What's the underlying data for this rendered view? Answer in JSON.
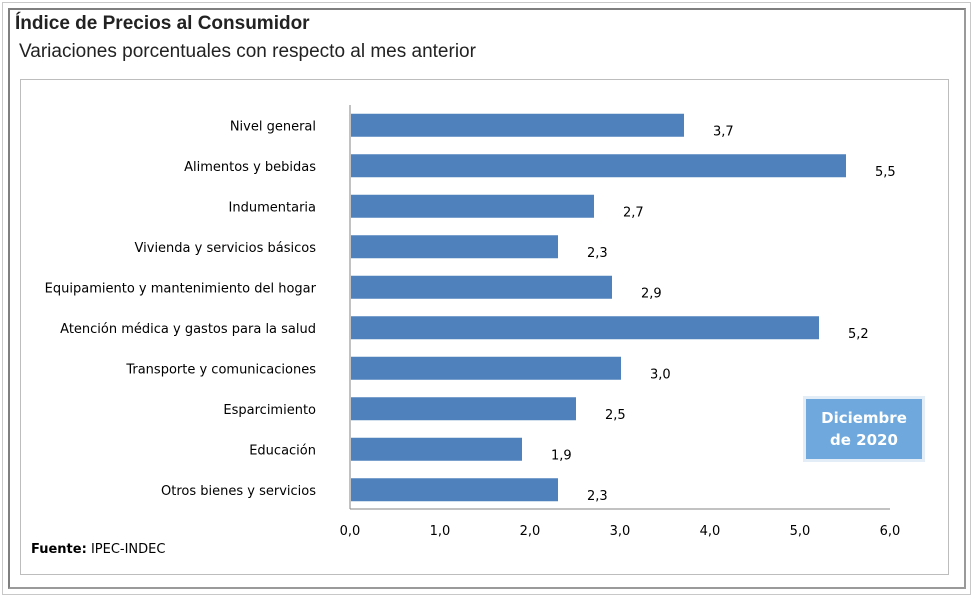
{
  "header": {
    "title": "Índice de Precios al Consumidor",
    "subtitle": "Variaciones porcentuales con respecto al mes anterior"
  },
  "source": {
    "label": "Fuente:",
    "text": "IPEC-INDEC"
  },
  "badge": {
    "line1": "Diciembre",
    "line2": "de 2020"
  },
  "colors": {
    "bar": "#4f81bd",
    "badge": "#6fa8dc"
  },
  "chart_data": {
    "type": "bar",
    "orientation": "horizontal",
    "categories": [
      "Nivel  general",
      "Alimentos y bebidas",
      "Indumentaria",
      "Vivienda y servicios básicos",
      "Equipamiento y  mantenimiento del hogar",
      "Atención médica y gastos para la salud",
      "Transporte y comunicaciones",
      "Esparcimiento",
      "Educación",
      "Otros bienes y servicios"
    ],
    "values": [
      3.7,
      5.5,
      2.7,
      2.3,
      2.9,
      5.2,
      3.0,
      2.5,
      1.9,
      2.3
    ],
    "data_labels": [
      "3,7",
      "5,5",
      "2,7",
      "2,3",
      "2,9",
      "5,2",
      "3,0",
      "2,5",
      "1,9",
      "2,3"
    ],
    "xlim": [
      0,
      6
    ],
    "x_ticks": [
      "0,0",
      "1,0",
      "2,0",
      "3,0",
      "4,0",
      "5,0",
      "6,0"
    ],
    "grid": false,
    "legend": "none"
  }
}
